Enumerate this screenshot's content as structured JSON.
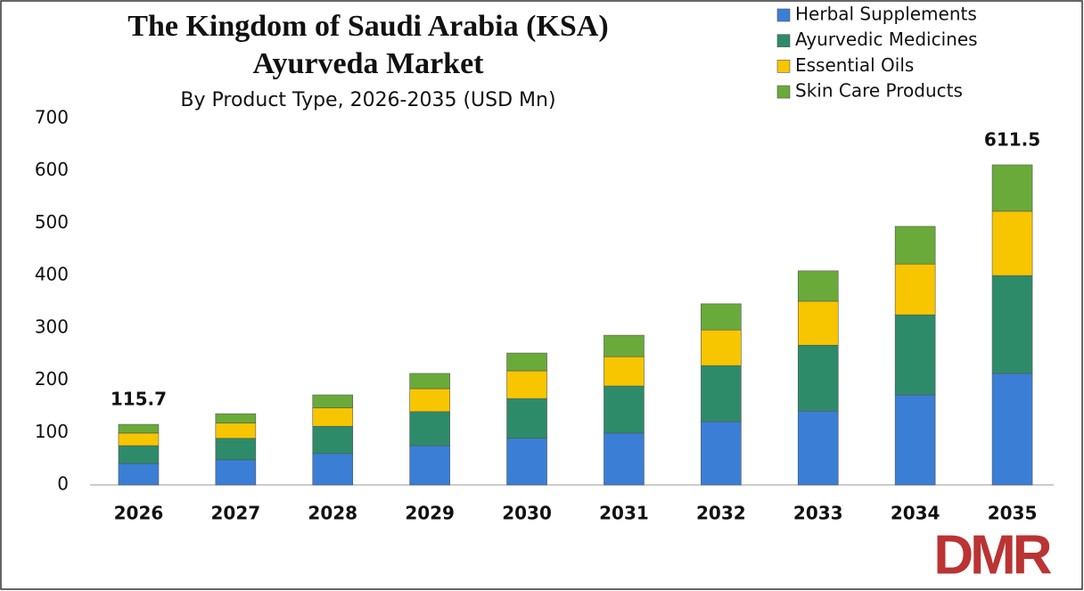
{
  "chart_data": {
    "type": "stacked_bar",
    "title": "The Kingdom of Saudi Arabia (KSA)",
    "title_line2": "Ayurveda Market",
    "subtitle": "By Product Type, 2026-2035 (USD Mn)",
    "categories": [
      "2026",
      "2027",
      "2028",
      "2029",
      "2030",
      "2031",
      "2032",
      "2033",
      "2034",
      "2035"
    ],
    "series": [
      {
        "name": "Herbal Supplements",
        "color": "#3a7fd5",
        "values": [
          41,
          48,
          60,
          75,
          89,
          99,
          121,
          141,
          172,
          213
        ]
      },
      {
        "name": "Ayurvedic Medicines",
        "color": "#2e8b6a",
        "values": [
          34,
          41,
          52,
          65,
          76,
          90,
          107,
          126,
          153,
          187
        ]
      },
      {
        "name": "Essential Oils",
        "color": "#f7c600",
        "values": [
          24,
          29,
          35,
          44,
          53,
          56,
          68,
          84,
          97,
          123
        ]
      },
      {
        "name": "Skin Care Products",
        "color": "#6aaa3a",
        "values": [
          16.7,
          18,
          25,
          29,
          34,
          41,
          50,
          58,
          72,
          88.5
        ]
      }
    ],
    "totals": [
      115.7,
      null,
      null,
      null,
      null,
      null,
      null,
      null,
      null,
      611.5
    ],
    "ylim": [
      0,
      700
    ],
    "yticks": [
      0,
      100,
      200,
      300,
      400,
      500,
      600,
      700
    ],
    "grid": false,
    "legend": "top-right",
    "logo": "DMR"
  }
}
